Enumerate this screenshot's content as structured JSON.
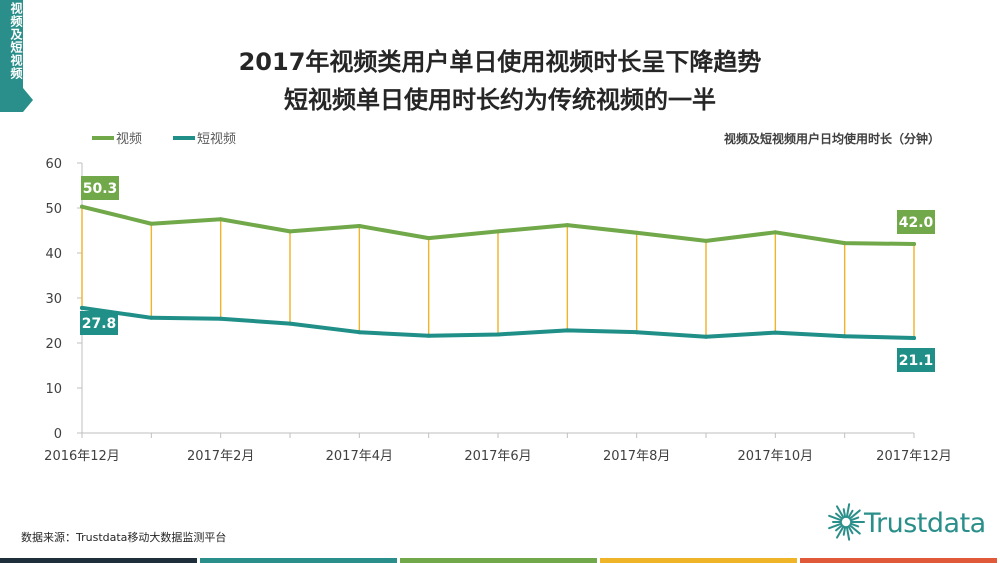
{
  "side_tab": "视频及短视频",
  "title_line1": "2017年视频类用户单日使用视频时长呈下降趋势",
  "title_line2": "短视频单日使用时长约为传统视频的一半",
  "source": "数据来源：Trustdata移动大数据监测平台",
  "logo_text": "Trustdata",
  "colors": {
    "video": "#71a849",
    "short_video": "#1f8f88",
    "connector": "#f0b428",
    "tab": "#2a8f8a",
    "bottom_bars": [
      "#1e2e3a",
      "#2a8f8a",
      "#71a849",
      "#f0b428",
      "#e05a3a"
    ]
  },
  "chart_data": {
    "type": "line",
    "unit_label": "视频及短视频用户日均使用时长（分钟）",
    "ylim": [
      0,
      60
    ],
    "yticks": [
      "0",
      "10",
      "20",
      "30",
      "40",
      "50",
      "60"
    ],
    "xticks": [
      "2016年12月",
      "2017年2月",
      "2017年4月",
      "2017年6月",
      "2017年8月",
      "2017年10月",
      "2017年12月"
    ],
    "x": [
      "2016年12月",
      "2017年1月",
      "2017年2月",
      "2017年3月",
      "2017年4月",
      "2017年5月",
      "2017年6月",
      "2017年7月",
      "2017年8月",
      "2017年9月",
      "2017年10月",
      "2017年11月",
      "2017年12月"
    ],
    "series": [
      {
        "name": "视频",
        "values": [
          50.3,
          46.5,
          47.5,
          44.8,
          46.0,
          43.3,
          44.8,
          46.2,
          44.5,
          42.7,
          44.6,
          42.2,
          42.0
        ]
      },
      {
        "name": "短视频",
        "values": [
          27.8,
          25.6,
          25.4,
          24.3,
          22.4,
          21.6,
          21.9,
          22.8,
          22.4,
          21.4,
          22.3,
          21.5,
          21.1
        ]
      }
    ],
    "data_labels": [
      "50.3",
      "27.8",
      "42.0",
      "21.1"
    ],
    "legend": "top-left",
    "grid": false
  }
}
